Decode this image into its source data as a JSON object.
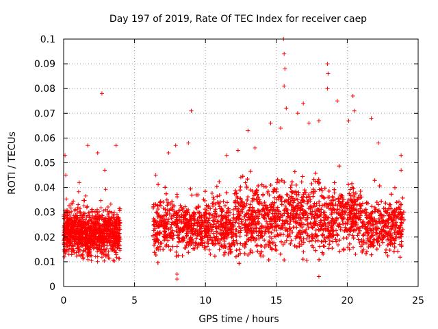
{
  "chart_data": {
    "type": "scatter",
    "title": "Day 197 of 2019, Rate Of TEC Index for receiver caep",
    "xlabel": "GPS time / hours",
    "ylabel": "ROTI / TECUs",
    "xlim": [
      0,
      25
    ],
    "ylim": [
      0,
      0.1
    ],
    "x_ticks": [
      "0",
      "5",
      "10",
      "15",
      "20",
      "25"
    ],
    "y_ticks": [
      "0",
      "0.01",
      "0.02",
      "0.03",
      "0.04",
      "0.05",
      "0.06",
      "0.07",
      "0.08",
      "0.09",
      "0.1"
    ],
    "grid": true,
    "marker": "+",
    "color": "#ff0000",
    "series": [
      {
        "name": "ROTI",
        "segments": [
          {
            "x_start": 0.0,
            "x_end": 4.0,
            "band": [
              0.008,
              0.035
            ]
          },
          {
            "x_start": 6.3,
            "x_end": 24.0,
            "band": [
              0.008,
              0.04
            ]
          }
        ],
        "outliers": [
          {
            "x": 0.1,
            "y": 0.053
          },
          {
            "x": 0.15,
            "y": 0.045
          },
          {
            "x": 1.1,
            "y": 0.042
          },
          {
            "x": 1.7,
            "y": 0.057
          },
          {
            "x": 2.4,
            "y": 0.054
          },
          {
            "x": 2.7,
            "y": 0.078
          },
          {
            "x": 2.9,
            "y": 0.047
          },
          {
            "x": 3.7,
            "y": 0.057
          },
          {
            "x": 6.5,
            "y": 0.045
          },
          {
            "x": 7.4,
            "y": 0.054
          },
          {
            "x": 7.9,
            "y": 0.057
          },
          {
            "x": 8.0,
            "y": 0.003
          },
          {
            "x": 8.8,
            "y": 0.058
          },
          {
            "x": 9.0,
            "y": 0.071
          },
          {
            "x": 11.5,
            "y": 0.053
          },
          {
            "x": 12.3,
            "y": 0.055
          },
          {
            "x": 13.0,
            "y": 0.063
          },
          {
            "x": 13.5,
            "y": 0.056
          },
          {
            "x": 14.6,
            "y": 0.066
          },
          {
            "x": 15.3,
            "y": 0.064
          },
          {
            "x": 15.5,
            "y": 0.1
          },
          {
            "x": 15.55,
            "y": 0.094
          },
          {
            "x": 15.6,
            "y": 0.088
          },
          {
            "x": 15.55,
            "y": 0.081
          },
          {
            "x": 15.7,
            "y": 0.072
          },
          {
            "x": 16.5,
            "y": 0.07
          },
          {
            "x": 16.9,
            "y": 0.074
          },
          {
            "x": 17.3,
            "y": 0.066
          },
          {
            "x": 18.0,
            "y": 0.067
          },
          {
            "x": 18.6,
            "y": 0.09
          },
          {
            "x": 18.65,
            "y": 0.086
          },
          {
            "x": 18.6,
            "y": 0.08
          },
          {
            "x": 19.3,
            "y": 0.075
          },
          {
            "x": 20.1,
            "y": 0.067
          },
          {
            "x": 20.4,
            "y": 0.077
          },
          {
            "x": 20.5,
            "y": 0.071
          },
          {
            "x": 21.7,
            "y": 0.068
          },
          {
            "x": 22.2,
            "y": 0.058
          },
          {
            "x": 23.8,
            "y": 0.053
          },
          {
            "x": 23.8,
            "y": 0.047
          },
          {
            "x": 8.0,
            "y": 0.005
          },
          {
            "x": 18.0,
            "y": 0.004
          }
        ]
      }
    ]
  }
}
